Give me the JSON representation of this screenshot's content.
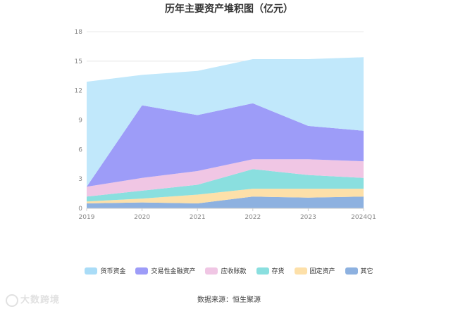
{
  "chart_data": {
    "type": "area",
    "stacked": true,
    "title": "历年主要资产堆积图（亿元）",
    "categories": [
      "2019",
      "2020",
      "2021",
      "2022",
      "2023",
      "2024Q1"
    ],
    "y_ticks": [
      0,
      3,
      6,
      9,
      12,
      15,
      18
    ],
    "ylim": [
      0,
      18
    ],
    "grid": true,
    "legend_position": "bottom",
    "series": [
      {
        "name": "其它",
        "color": "#8db1e0",
        "values": [
          0.5,
          0.6,
          0.5,
          1.2,
          1.1,
          1.2
        ]
      },
      {
        "name": "固定资产",
        "color": "#fde0a9",
        "values": [
          0.2,
          0.4,
          0.9,
          0.8,
          0.9,
          0.8
        ]
      },
      {
        "name": "存货",
        "color": "#8adfdf",
        "values": [
          0.5,
          0.8,
          1.0,
          2.0,
          1.4,
          1.1
        ]
      },
      {
        "name": "应收账款",
        "color": "#f0c6e4",
        "values": [
          1.0,
          1.3,
          1.4,
          1.0,
          1.6,
          1.7
        ]
      },
      {
        "name": "交易性金融资产",
        "color": "#9d9cf8",
        "values": [
          0.0,
          7.4,
          5.7,
          5.7,
          3.4,
          3.1
        ]
      },
      {
        "name": "货币资金",
        "color": "#c1e8fb",
        "values": [
          10.7,
          3.1,
          4.5,
          4.5,
          6.8,
          7.5
        ]
      }
    ]
  },
  "legend_order": [
    "货币资金",
    "交易性金融资产",
    "应收账款",
    "存货",
    "固定资产",
    "其它"
  ],
  "source_text": "数据来源：恒生聚源",
  "watermark_text": "大数跨境"
}
